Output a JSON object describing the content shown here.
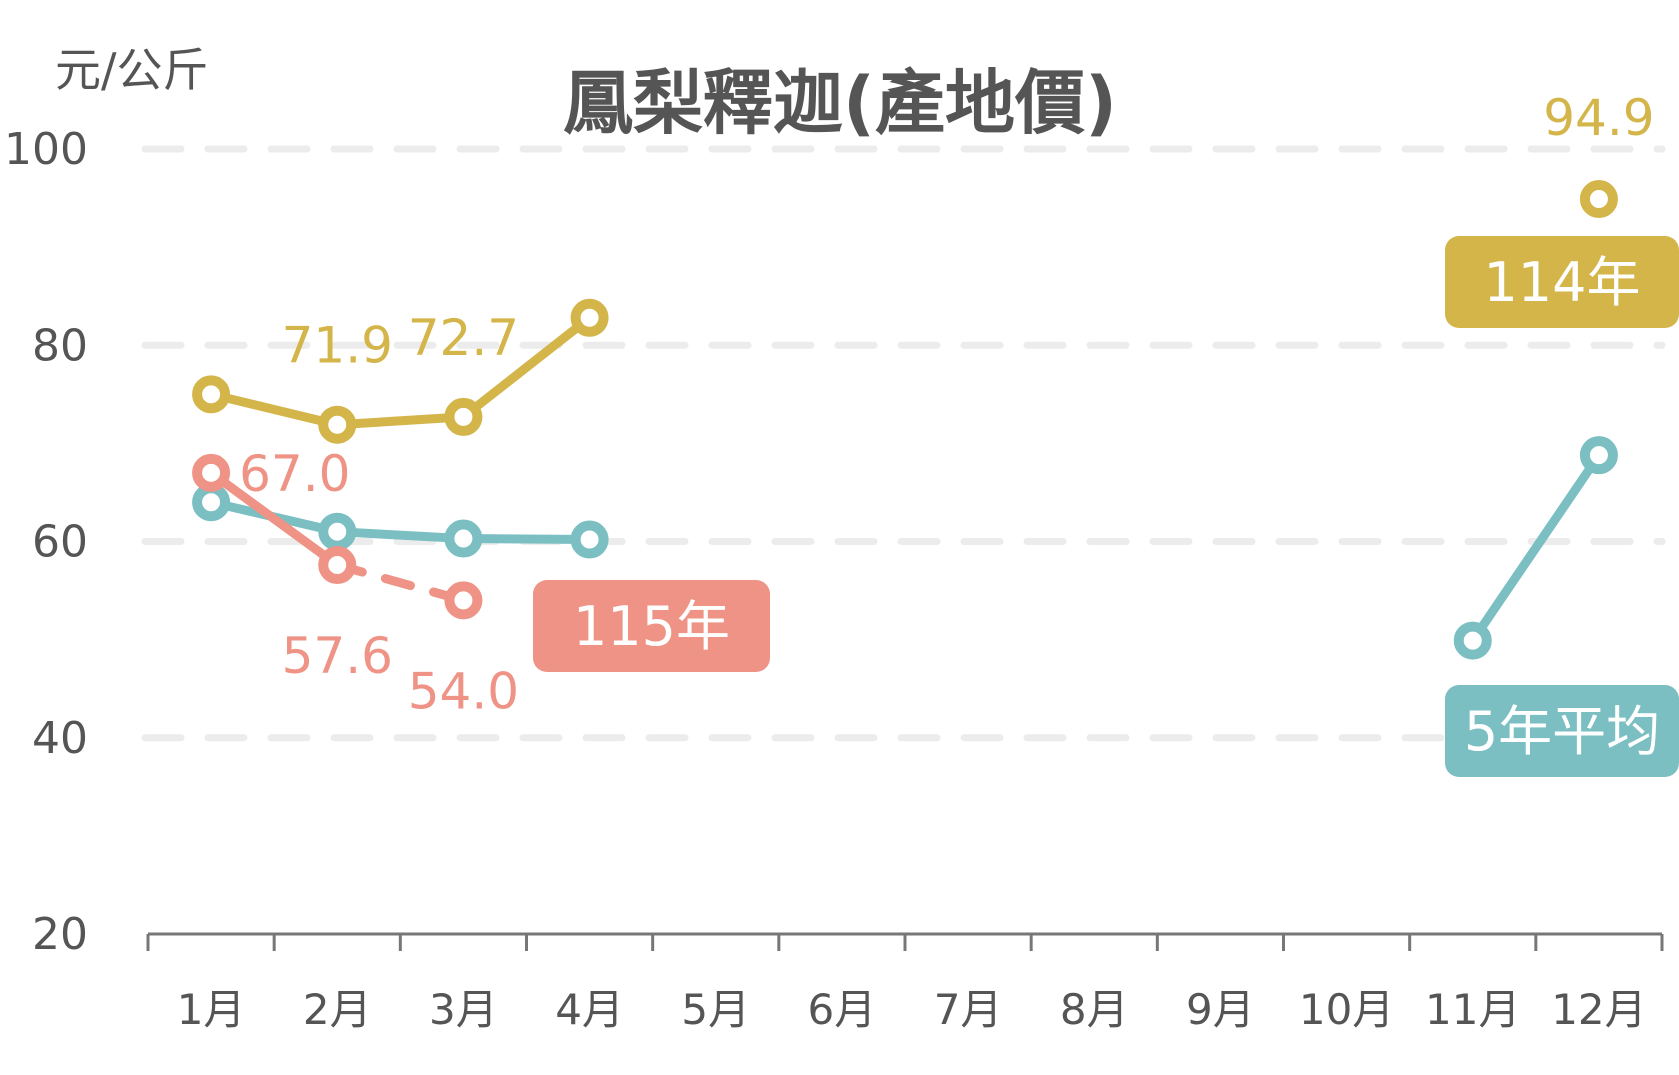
{
  "chart_data": {
    "type": "line",
    "title": "鳳梨釋迦(產地價)",
    "ylabel": "元/公斤",
    "ylim": [
      20,
      100
    ],
    "yticks": [
      20,
      40,
      60,
      80,
      100
    ],
    "grid": true,
    "categories": [
      "1月",
      "2月",
      "3月",
      "4月",
      "5月",
      "6月",
      "7月",
      "8月",
      "9月",
      "10月",
      "11月",
      "12月"
    ],
    "series": [
      {
        "name": "114年",
        "color": "#d4b54a",
        "values": [
          75.0,
          71.9,
          72.7,
          82.8,
          null,
          null,
          null,
          null,
          null,
          null,
          null,
          94.9
        ],
        "labels": {
          "1": "71.9",
          "2": "72.7",
          "11": "94.9"
        }
      },
      {
        "name": "5年平均",
        "color": "#7bbfc3",
        "values": [
          64.0,
          61.0,
          60.3,
          60.2,
          null,
          null,
          null,
          null,
          null,
          null,
          49.9,
          68.8
        ]
      },
      {
        "name": "115年",
        "color": "#ee9385",
        "values": [
          67.0,
          57.6,
          54.0,
          null,
          null,
          null,
          null,
          null,
          null,
          null,
          null,
          null
        ],
        "dashed_from": 1,
        "labels": {
          "0": "67.0",
          "1": "57.6",
          "2": "54.0"
        }
      }
    ]
  }
}
